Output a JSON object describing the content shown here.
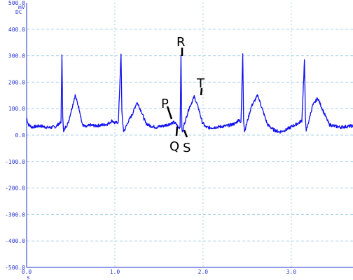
{
  "chart_data": {
    "type": "line",
    "title": "",
    "y_unit": "mV",
    "y_coupling": "DC",
    "x_unit": "s",
    "xlim": [
      0.0,
      3.7
    ],
    "ylim": [
      -500.0,
      500.0
    ],
    "x_ticks": [
      "0.0",
      "1.0",
      "2.0",
      "3.0"
    ],
    "y_ticks": [
      "500.0",
      "400.0",
      "300.0",
      "200.0",
      "100.0",
      "0.0",
      "-100.0",
      "-200.0",
      "-300.0",
      "-400.0",
      "-500.0"
    ],
    "grid": true,
    "colors": {
      "trace": "#1010ee",
      "grid": "#a8cfe8",
      "tick_text": "#2233cc"
    },
    "series": [
      {
        "name": "",
        "x": [
          0.0,
          0.02,
          0.06,
          0.15,
          0.25,
          0.33,
          0.37,
          0.39,
          0.4,
          0.41,
          0.42,
          0.44,
          0.47,
          0.5,
          0.55,
          0.6,
          0.63,
          0.67,
          0.72,
          0.78,
          0.85,
          0.92,
          0.97,
          1.0,
          1.04,
          1.07,
          1.08,
          1.09,
          1.1,
          1.12,
          1.15,
          1.2,
          1.25,
          1.3,
          1.35,
          1.4,
          1.47,
          1.55,
          1.62,
          1.67,
          1.7,
          1.72,
          1.74,
          1.75,
          1.76,
          1.77,
          1.78,
          1.8,
          1.84,
          1.9,
          1.95,
          1.99,
          2.03,
          2.08,
          2.14,
          2.2,
          2.27,
          2.33,
          2.37,
          2.41,
          2.43,
          2.45,
          2.46,
          2.47,
          2.48,
          2.5,
          2.55,
          2.62,
          2.68,
          2.73,
          2.8,
          2.87,
          2.94,
          3.02,
          3.08,
          3.12,
          3.15,
          3.16,
          3.17,
          3.18,
          3.2,
          3.24,
          3.3,
          3.37,
          3.43,
          3.48,
          3.55,
          3.62,
          3.7
        ],
        "values": [
          65,
          40,
          30,
          35,
          28,
          32,
          45,
          45,
          300,
          70,
          10,
          30,
          45,
          85,
          150,
          95,
          40,
          30,
          38,
          35,
          38,
          42,
          55,
          45,
          50,
          305,
          95,
          40,
          15,
          25,
          50,
          80,
          125,
          90,
          45,
          35,
          30,
          35,
          42,
          48,
          40,
          28,
          30,
          305,
          25,
          10,
          35,
          55,
          100,
          145,
          100,
          50,
          30,
          28,
          30,
          32,
          35,
          40,
          45,
          60,
          45,
          310,
          60,
          15,
          25,
          50,
          110,
          150,
          90,
          40,
          20,
          12,
          20,
          35,
          45,
          55,
          285,
          70,
          20,
          25,
          55,
          110,
          140,
          85,
          40,
          35,
          30,
          32,
          35
        ]
      }
    ],
    "annotations": [
      "P",
      "Q",
      "R",
      "S",
      "T"
    ]
  }
}
